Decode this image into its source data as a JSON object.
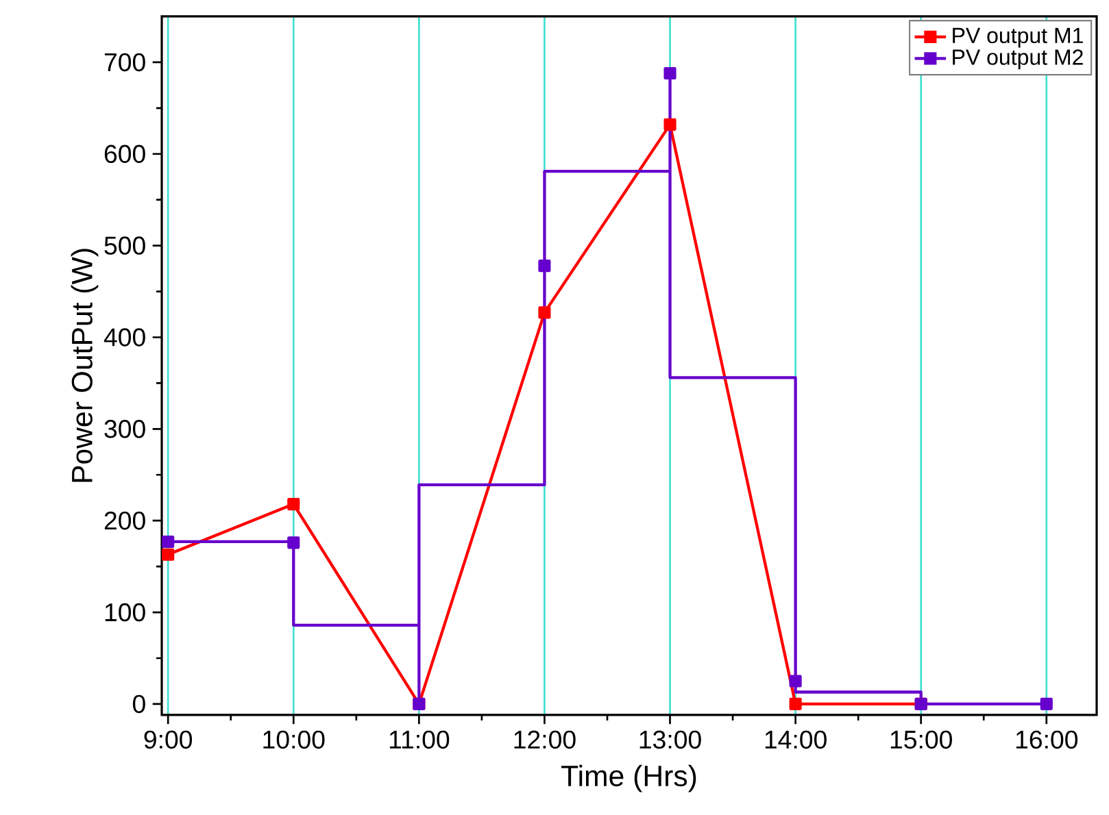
{
  "chart_data": {
    "type": "line",
    "xlabel": "Time (Hrs)",
    "ylabel": "Power OutPut (W)",
    "xlim": [
      8.95,
      16.4
    ],
    "ylim": [
      -12,
      750
    ],
    "xticks": [
      {
        "value": 9,
        "label": "9:00"
      },
      {
        "value": 10,
        "label": "10:00"
      },
      {
        "value": 11,
        "label": "11:00"
      },
      {
        "value": 12,
        "label": "12:00"
      },
      {
        "value": 13,
        "label": "13:00"
      },
      {
        "value": 14,
        "label": "14:00"
      },
      {
        "value": 15,
        "label": "15:00"
      },
      {
        "value": 16,
        "label": "16:00"
      }
    ],
    "yticks": [
      0,
      100,
      200,
      300,
      400,
      500,
      600,
      700
    ],
    "grid": "x",
    "legend": "top right",
    "marker": "square",
    "series": [
      {
        "name": "PV output M1",
        "color": "#ff0000",
        "x": [
          9,
          10,
          11,
          12,
          13,
          14,
          15
        ],
        "values": [
          163,
          218,
          0,
          427,
          632,
          0,
          0
        ]
      },
      {
        "name": "PV output M2",
        "color": "#6600cc",
        "marker": "none",
        "x": [
          9,
          10,
          10,
          11,
          11,
          11,
          12,
          12,
          13,
          13,
          13,
          14,
          14,
          15,
          15,
          16
        ],
        "values": [
          177,
          177,
          86,
          86,
          0,
          239,
          239,
          581,
          581,
          688,
          356,
          356,
          13,
          13,
          0,
          0
        ]
      },
      {
        "type": "scatter",
        "color": "#6600cc",
        "x": [
          9,
          10,
          11,
          12,
          13,
          14,
          15,
          16
        ],
        "values": [
          177,
          176,
          0,
          478,
          688,
          25,
          0,
          0
        ]
      }
    ]
  }
}
